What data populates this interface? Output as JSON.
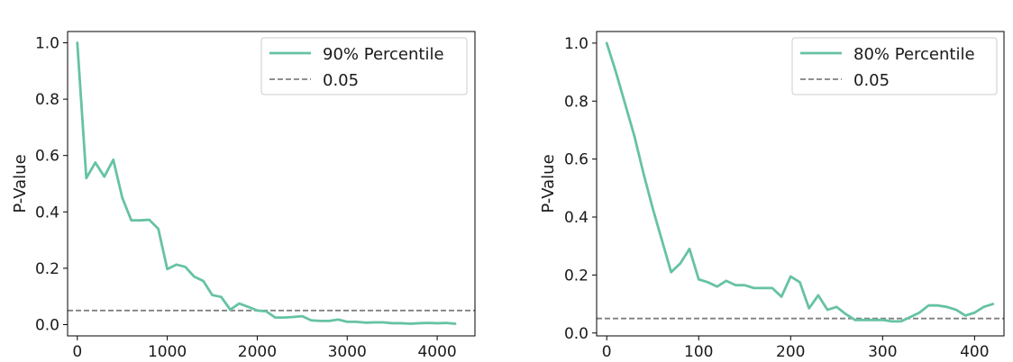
{
  "chart_data": [
    {
      "type": "line",
      "title": "",
      "xlabel": "",
      "ylabel": "P-Value",
      "xlim": [
        -108,
        4420
      ],
      "ylim": [
        -0.04,
        1.04
      ],
      "xticks": [
        0,
        1000,
        2000,
        3000,
        4000
      ],
      "yticks": [
        0.0,
        0.2,
        0.4,
        0.6,
        0.8,
        1.0
      ],
      "legend_position": "top-right",
      "series": [
        {
          "name": "90% Percentile",
          "color": "#66c2a5",
          "x": [
            0,
            100,
            200,
            300,
            400,
            500,
            600,
            700,
            800,
            900,
            1000,
            1100,
            1200,
            1300,
            1400,
            1500,
            1600,
            1700,
            1800,
            1900,
            2000,
            2100,
            2200,
            2300,
            2400,
            2500,
            2600,
            2700,
            2800,
            2900,
            3000,
            3100,
            3200,
            3300,
            3400,
            3500,
            3600,
            3700,
            3800,
            3900,
            4000,
            4100,
            4200
          ],
          "values": [
            1.0,
            0.52,
            0.575,
            0.525,
            0.585,
            0.45,
            0.37,
            0.37,
            0.372,
            0.34,
            0.197,
            0.213,
            0.205,
            0.17,
            0.155,
            0.105,
            0.098,
            0.053,
            0.075,
            0.063,
            0.05,
            0.047,
            0.025,
            0.025,
            0.027,
            0.03,
            0.015,
            0.013,
            0.013,
            0.018,
            0.01,
            0.01,
            0.007,
            0.008,
            0.008,
            0.005,
            0.005,
            0.003,
            0.005,
            0.006,
            0.005,
            0.006,
            0.003
          ]
        }
      ],
      "reference_line": {
        "label": "0.05",
        "value": 0.05,
        "color": "#808080",
        "style": "dashed"
      }
    },
    {
      "type": "line",
      "title": "",
      "xlabel": "",
      "ylabel": "P-Value",
      "xlim": [
        -11,
        432
      ],
      "ylim": [
        -0.01,
        1.04
      ],
      "xticks": [
        0,
        100,
        200,
        300,
        400
      ],
      "yticks": [
        0.0,
        0.2,
        0.4,
        0.6,
        0.8,
        1.0
      ],
      "legend_position": "top-right",
      "series": [
        {
          "name": "80% Percentile",
          "color": "#66c2a5",
          "x": [
            0,
            10,
            20,
            30,
            40,
            50,
            60,
            70,
            80,
            90,
            100,
            110,
            120,
            130,
            140,
            150,
            160,
            170,
            180,
            190,
            200,
            210,
            220,
            230,
            240,
            250,
            260,
            270,
            280,
            290,
            300,
            310,
            320,
            330,
            340,
            350,
            360,
            370,
            380,
            390,
            400,
            410,
            420
          ],
          "values": [
            1.0,
            0.9,
            0.79,
            0.68,
            0.55,
            0.43,
            0.32,
            0.21,
            0.24,
            0.29,
            0.185,
            0.175,
            0.16,
            0.18,
            0.165,
            0.165,
            0.155,
            0.155,
            0.155,
            0.125,
            0.195,
            0.175,
            0.085,
            0.13,
            0.08,
            0.09,
            0.065,
            0.045,
            0.045,
            0.045,
            0.045,
            0.04,
            0.04,
            0.055,
            0.07,
            0.095,
            0.095,
            0.09,
            0.08,
            0.06,
            0.07,
            0.09,
            0.1
          ]
        }
      ],
      "reference_line": {
        "label": "0.05",
        "value": 0.05,
        "color": "#808080",
        "style": "dashed"
      }
    }
  ]
}
